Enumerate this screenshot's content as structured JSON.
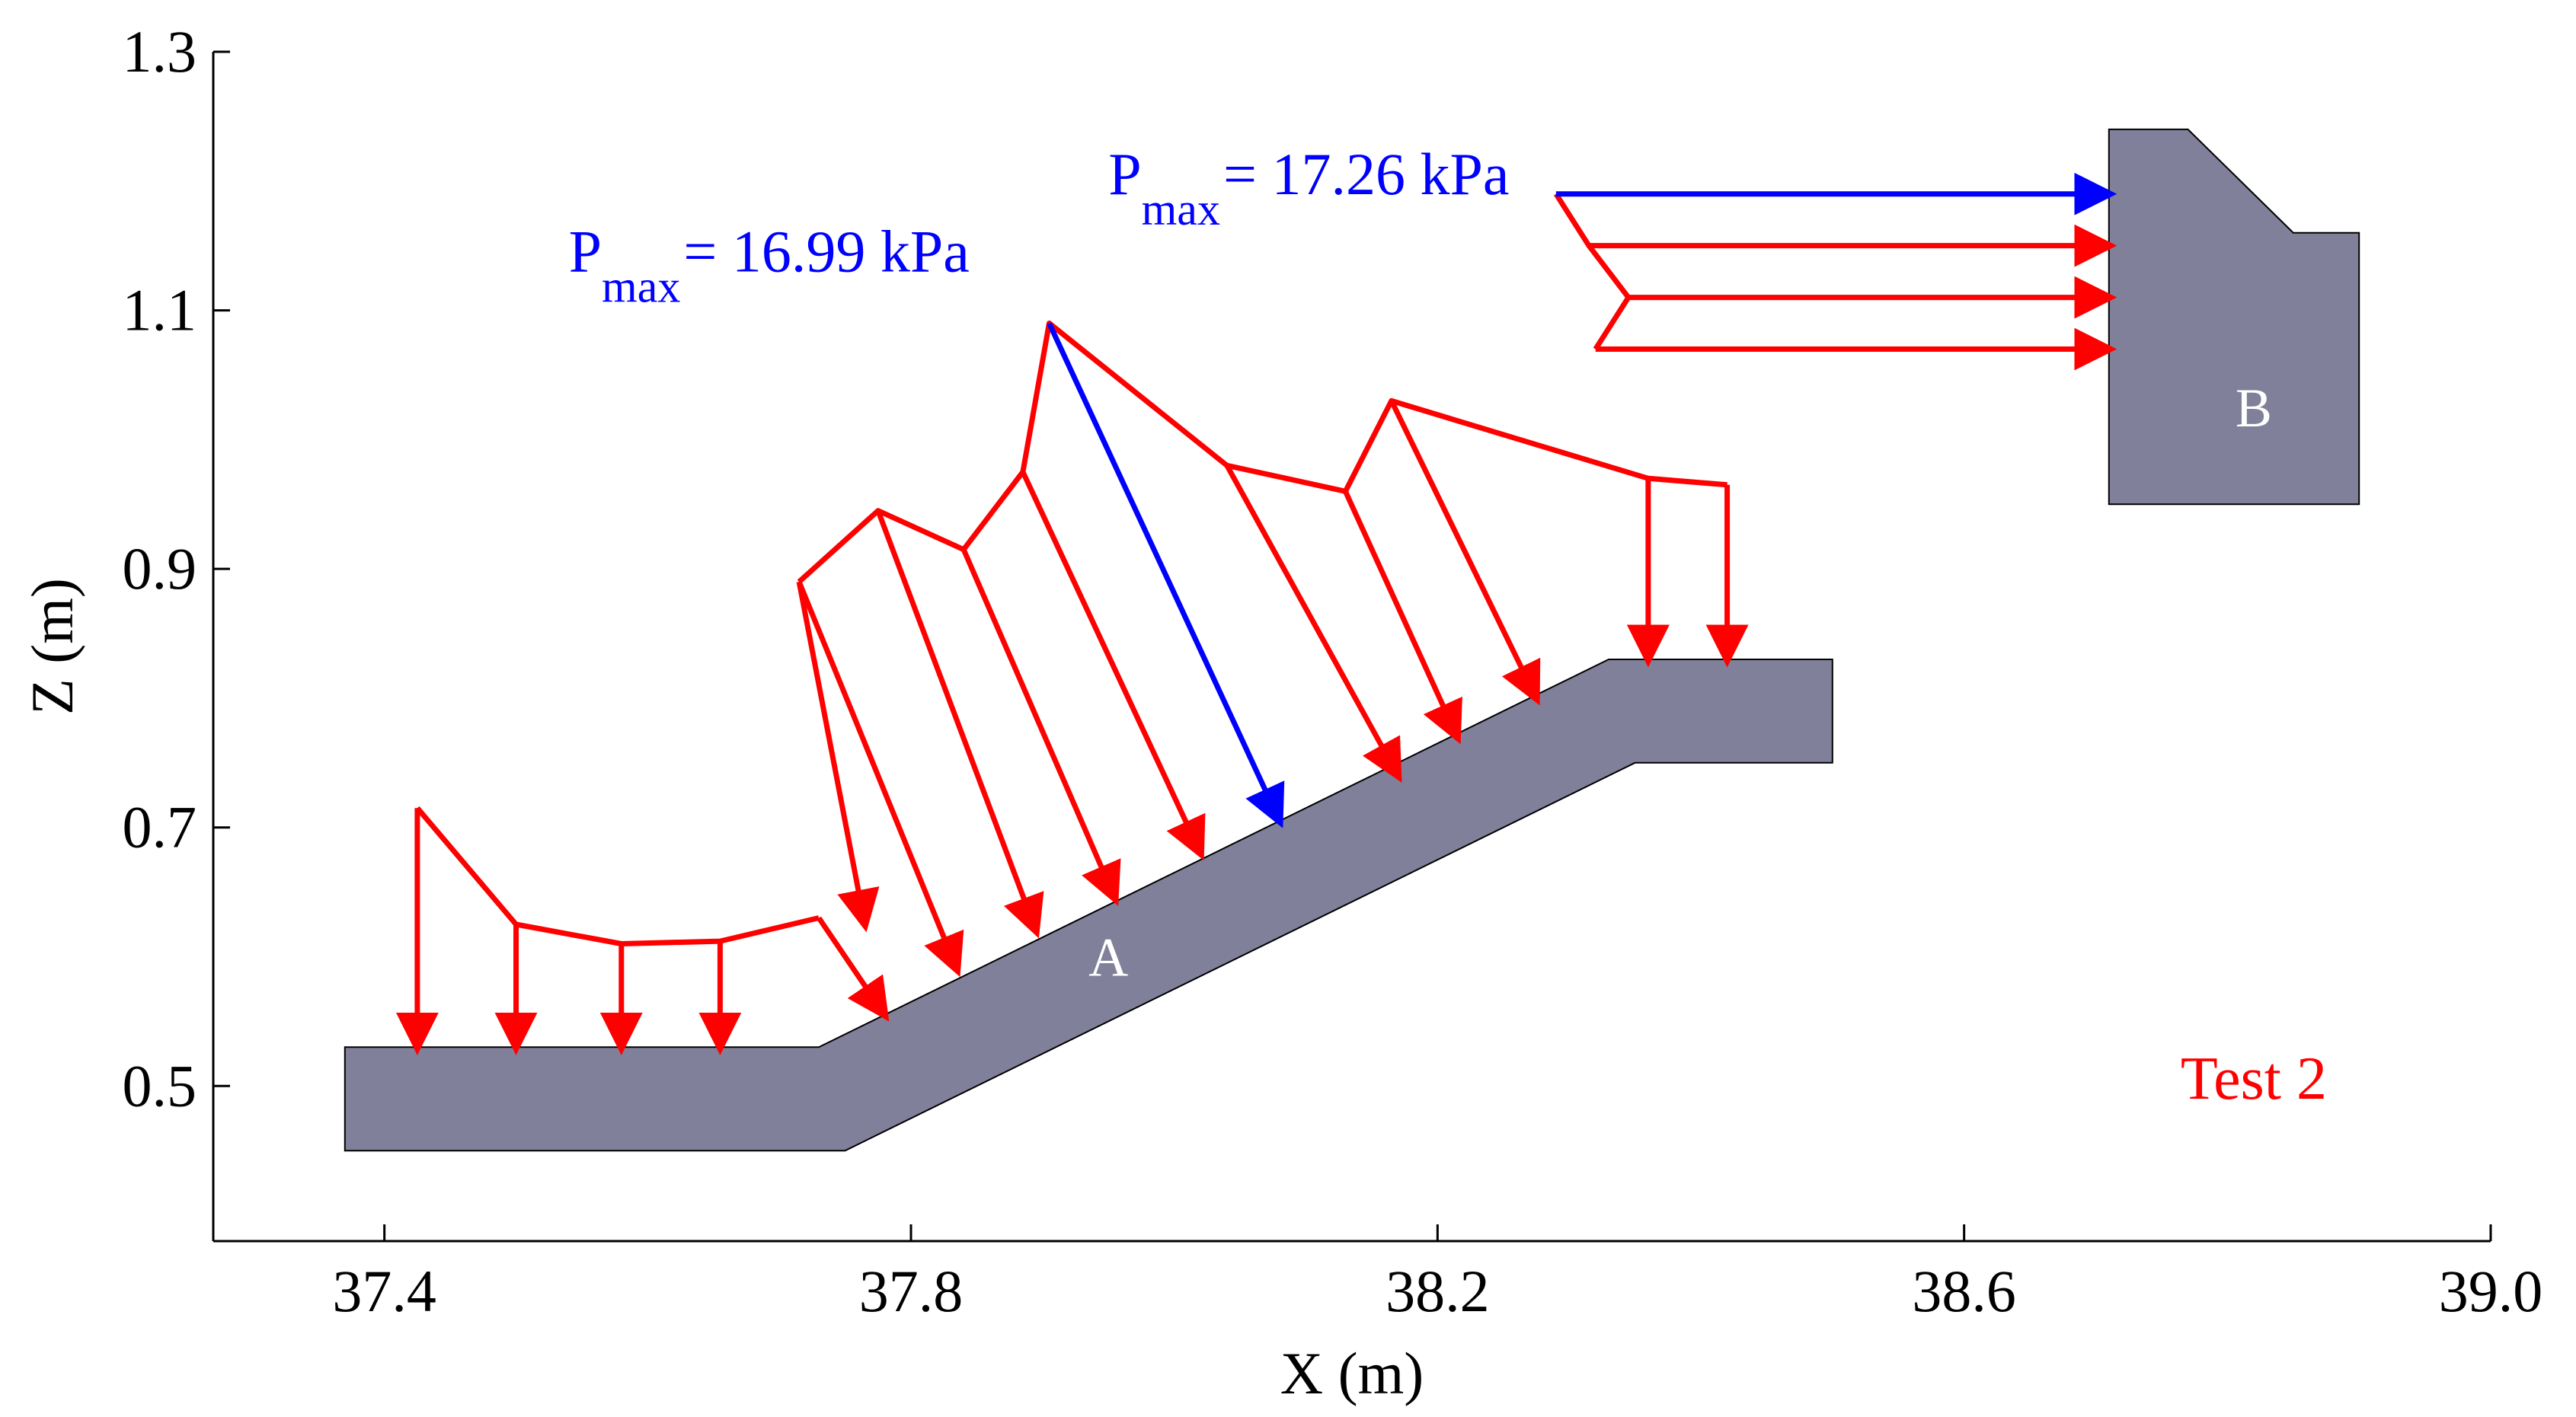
{
  "chart_data": {
    "type": "diagram",
    "xlabel": "X (m)",
    "ylabel": "Z (m)",
    "xlim": [
      37.27,
      39.0
    ],
    "ylim": [
      0.38,
      1.3
    ],
    "xticks": [
      "37.4",
      "37.8",
      "38.2",
      "38.6",
      "39.0"
    ],
    "xtick_values": [
      37.4,
      37.8,
      38.2,
      38.6,
      39.0
    ],
    "yticks": [
      "0.5",
      "0.7",
      "0.9",
      "1.1",
      "1.3"
    ],
    "ytick_values": [
      0.5,
      0.7,
      0.9,
      1.1,
      1.3
    ],
    "structures": [
      {
        "label": "A",
        "label_at": [
          37.95,
          0.595
        ],
        "color": "#80809b",
        "outline": [
          [
            37.37,
            0.53
          ],
          [
            37.73,
            0.53
          ],
          [
            38.33,
            0.83
          ],
          [
            38.5,
            0.83
          ],
          [
            38.5,
            0.75
          ],
          [
            38.35,
            0.75
          ],
          [
            37.75,
            0.45
          ],
          [
            37.37,
            0.45
          ]
        ]
      },
      {
        "label": "B",
        "label_at": [
          38.82,
          1.02
        ],
        "color": "#80809b",
        "outline": [
          [
            38.71,
            1.24
          ],
          [
            38.77,
            1.24
          ],
          [
            38.85,
            1.16
          ],
          [
            38.9,
            1.16
          ],
          [
            38.9,
            0.95
          ],
          [
            38.71,
            0.95
          ]
        ]
      }
    ],
    "series": [
      {
        "color": "#ff0000",
        "envelope": [
          [
            37.425,
            0.715
          ],
          [
            37.5,
            0.625
          ],
          [
            37.58,
            0.61
          ],
          [
            37.655,
            0.612
          ],
          [
            37.73,
            0.63
          ]
        ],
        "arrows": [
          {
            "from": [
              37.425,
              0.715
            ],
            "to": [
              37.425,
              0.53
            ]
          },
          {
            "from": [
              37.5,
              0.625
            ],
            "to": [
              37.5,
              0.53
            ]
          },
          {
            "from": [
              37.58,
              0.61
            ],
            "to": [
              37.58,
              0.53
            ]
          },
          {
            "from": [
              37.655,
              0.612
            ],
            "to": [
              37.655,
              0.53
            ]
          },
          {
            "from": [
              37.73,
              0.63
            ],
            "to": [
              37.78,
              0.555
            ]
          }
        ]
      },
      {
        "color": "#ff0000",
        "envelope": [
          [
            37.715,
            0.89
          ],
          [
            37.775,
            0.945
          ],
          [
            37.84,
            0.915
          ],
          [
            37.885,
            0.975
          ],
          [
            37.905,
            1.09
          ],
          [
            38.04,
            0.98
          ],
          [
            38.13,
            0.96
          ],
          [
            38.165,
            1.03
          ],
          [
            38.36,
            0.97
          ],
          [
            38.42,
            0.965
          ]
        ],
        "arrows": [
          {
            "from": [
              37.715,
              0.89
            ],
            "to": [
              37.765,
              0.625
            ]
          },
          {
            "from": [
              37.715,
              0.89
            ],
            "to": [
              37.835,
              0.59
            ]
          },
          {
            "from": [
              37.775,
              0.945
            ],
            "to": [
              37.895,
              0.62
            ]
          },
          {
            "from": [
              37.84,
              0.915
            ],
            "to": [
              37.955,
              0.645
            ]
          },
          {
            "from": [
              37.885,
              0.975
            ],
            "to": [
              38.02,
              0.68
            ]
          },
          {
            "from": [
              37.905,
              1.09
            ],
            "to": [
              38.08,
              0.705
            ],
            "color": "#0000ff"
          },
          {
            "from": [
              38.04,
              0.98
            ],
            "to": [
              38.17,
              0.74
            ]
          },
          {
            "from": [
              38.13,
              0.96
            ],
            "to": [
              38.215,
              0.77
            ]
          },
          {
            "from": [
              38.165,
              1.03
            ],
            "to": [
              38.275,
              0.8
            ]
          },
          {
            "from": [
              38.36,
              0.97
            ],
            "to": [
              38.36,
              0.83
            ]
          },
          {
            "from": [
              38.42,
              0.965
            ],
            "to": [
              38.42,
              0.83
            ]
          }
        ]
      },
      {
        "color": "#ff0000",
        "envelope": [
          [
            38.29,
            1.19
          ],
          [
            38.315,
            1.15
          ],
          [
            38.345,
            1.11
          ],
          [
            38.32,
            1.07
          ]
        ],
        "arrows": [
          {
            "from": [
              38.29,
              1.19
            ],
            "to": [
              38.71,
              1.19
            ],
            "color": "#0000ff"
          },
          {
            "from": [
              38.315,
              1.15
            ],
            "to": [
              38.71,
              1.15
            ]
          },
          {
            "from": [
              38.345,
              1.11
            ],
            "to": [
              38.71,
              1.11
            ]
          },
          {
            "from": [
              38.32,
              1.07
            ],
            "to": [
              38.71,
              1.07
            ]
          }
        ]
      }
    ],
    "annotations": [
      {
        "main": "P",
        "sub": "max",
        "rest": "= 16.99 kPa",
        "at": [
          37.54,
          1.13
        ],
        "color": "#0000ff"
      },
      {
        "main": "P",
        "sub": "max",
        "rest": "= 17.26 kPa",
        "at": [
          37.95,
          1.19
        ],
        "color": "#0000ff"
      },
      {
        "text": "Test 2",
        "at": [
          38.82,
          0.49
        ],
        "color": "#ff0000"
      }
    ]
  }
}
